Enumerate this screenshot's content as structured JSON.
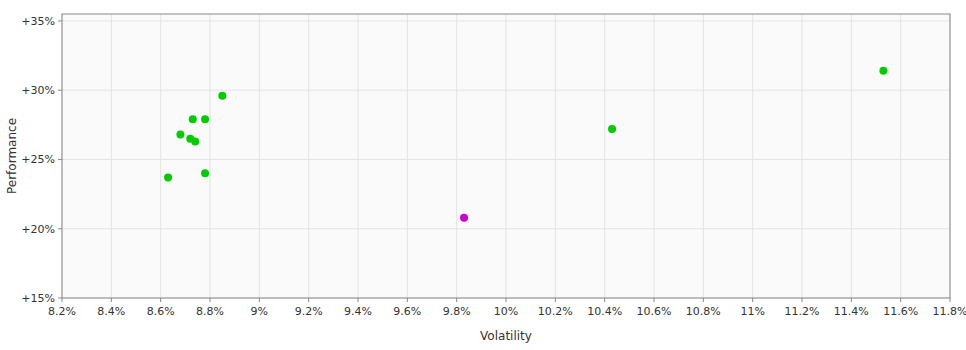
{
  "chart_data": {
    "type": "scatter",
    "xlabel": "Volatility",
    "ylabel": "Performance",
    "xlim": [
      0.082,
      0.118
    ],
    "ylim": [
      0.15,
      0.355
    ],
    "xticks": [
      {
        "value": 0.082,
        "label": "8.2%"
      },
      {
        "value": 0.084,
        "label": "8.4%"
      },
      {
        "value": 0.086,
        "label": "8.6%"
      },
      {
        "value": 0.088,
        "label": "8.8%"
      },
      {
        "value": 0.09,
        "label": "9%"
      },
      {
        "value": 0.092,
        "label": "9.2%"
      },
      {
        "value": 0.094,
        "label": "9.4%"
      },
      {
        "value": 0.096,
        "label": "9.6%"
      },
      {
        "value": 0.098,
        "label": "9.8%"
      },
      {
        "value": 0.1,
        "label": "10%"
      },
      {
        "value": 0.102,
        "label": "10.2%"
      },
      {
        "value": 0.104,
        "label": "10.4%"
      },
      {
        "value": 0.106,
        "label": "10.6%"
      },
      {
        "value": 0.108,
        "label": "10.8%"
      },
      {
        "value": 0.11,
        "label": "11%"
      },
      {
        "value": 0.112,
        "label": "11.2%"
      },
      {
        "value": 0.114,
        "label": "11.4%"
      },
      {
        "value": 0.116,
        "label": "11.6%"
      },
      {
        "value": 0.118,
        "label": "11.8%"
      }
    ],
    "yticks": [
      {
        "value": 0.15,
        "label": "+15%"
      },
      {
        "value": 0.2,
        "label": "+20%"
      },
      {
        "value": 0.25,
        "label": "+25%"
      },
      {
        "value": 0.3,
        "label": "+30%"
      },
      {
        "value": 0.35,
        "label": "+35%"
      }
    ],
    "grid": true,
    "series": [
      {
        "color": "#00cc00",
        "x": [
          0.0885,
          0.0873,
          0.0878,
          0.0868,
          0.0872,
          0.0874,
          0.0878,
          0.0863,
          0.1043,
          0.1153
        ],
        "values": [
          0.296,
          0.279,
          0.279,
          0.268,
          0.265,
          0.263,
          0.24,
          0.237,
          0.272,
          0.314
        ]
      },
      {
        "color": "#cc00cc",
        "x": [
          0.0983
        ],
        "values": [
          0.208
        ]
      }
    ]
  }
}
